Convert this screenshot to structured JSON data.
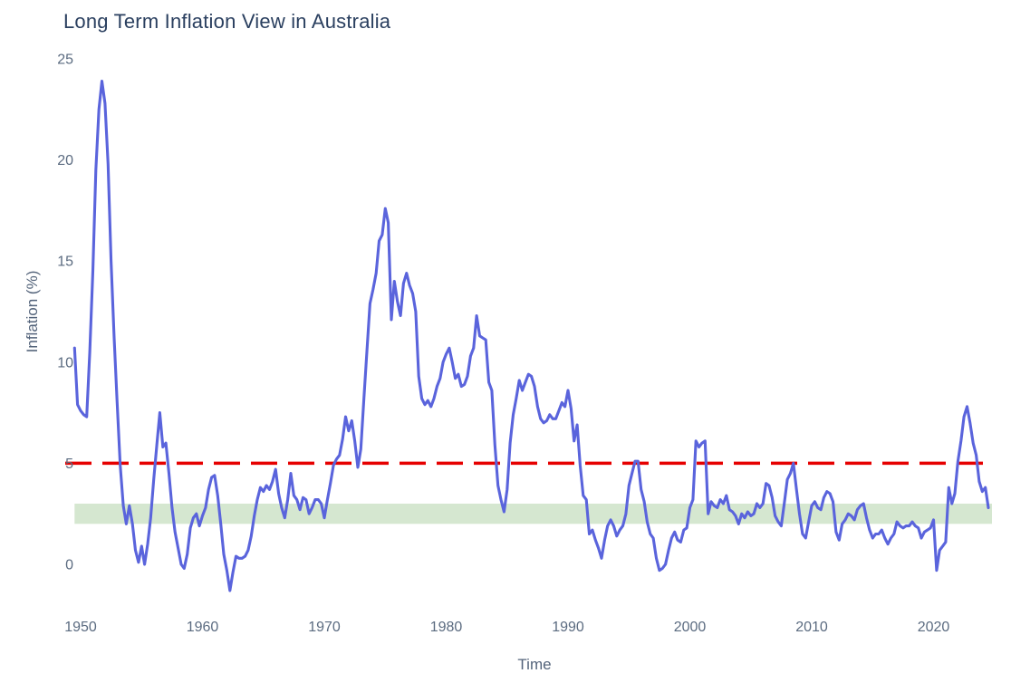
{
  "chart_data": {
    "type": "line",
    "title": "Long Term Inflation View in Australia",
    "xlabel": "Time",
    "ylabel": "Inflation (%)",
    "x_ticks": [
      "1950",
      "1960",
      "1970",
      "1980",
      "1990",
      "2000",
      "2010",
      "2020"
    ],
    "y_ticks": [
      "0",
      "5",
      "10",
      "15",
      "20",
      "25"
    ],
    "y_tick_values": [
      0,
      5,
      10,
      15,
      20,
      25
    ],
    "x_tick_values": [
      1950,
      1960,
      1970,
      1980,
      1990,
      2000,
      2010,
      2020
    ],
    "xlim": [
      1948.7,
      2024.8
    ],
    "ylim": [
      0,
      25
    ],
    "grid": false,
    "legend": "none",
    "line_color": "#5a64dc",
    "reference_line": {
      "y": 5,
      "color": "#e60000",
      "style": "dashed"
    },
    "target_band": {
      "y_from": 2,
      "y_to": 3,
      "color": "#d5e7d0"
    },
    "series": [
      {
        "name": "Inflation",
        "x_start": 1949.5,
        "x_step": 0.25,
        "values": [
          10.7,
          7.9,
          7.6,
          7.4,
          7.3,
          10.5,
          14.5,
          19.5,
          22.5,
          23.9,
          22.8,
          19.8,
          15.0,
          11.2,
          8.0,
          4.9,
          2.9,
          2.0,
          2.9,
          2.0,
          0.7,
          0.1,
          0.9,
          0.0,
          1.0,
          2.3,
          4.2,
          5.9,
          7.5,
          5.8,
          6.0,
          4.5,
          2.8,
          1.6,
          0.8,
          0.0,
          -0.2,
          0.5,
          1.8,
          2.3,
          2.5,
          1.9,
          2.4,
          2.8,
          3.7,
          4.3,
          4.4,
          3.4,
          2.0,
          0.5,
          -0.3,
          -1.3,
          -0.4,
          0.4,
          0.3,
          0.3,
          0.4,
          0.7,
          1.4,
          2.4,
          3.2,
          3.8,
          3.6,
          3.9,
          3.7,
          4.1,
          4.7,
          3.5,
          2.8,
          2.3,
          3.2,
          4.5,
          3.4,
          3.2,
          2.7,
          3.3,
          3.2,
          2.5,
          2.8,
          3.2,
          3.2,
          3.0,
          2.3,
          3.2,
          4.0,
          4.9,
          5.2,
          5.4,
          6.2,
          7.3,
          6.6,
          7.1,
          6.1,
          4.8,
          5.7,
          8.2,
          10.6,
          12.9,
          13.6,
          14.4,
          16.0,
          16.3,
          17.6,
          16.9,
          12.1,
          14.0,
          13.0,
          12.3,
          13.9,
          14.4,
          13.8,
          13.4,
          12.5,
          9.3,
          8.2,
          7.9,
          8.1,
          7.8,
          8.2,
          8.8,
          9.2,
          10.0,
          10.4,
          10.7,
          10.0,
          9.2,
          9.4,
          8.8,
          8.9,
          9.3,
          10.3,
          10.7,
          12.3,
          11.3,
          11.2,
          11.1,
          9.0,
          8.6,
          5.9,
          3.9,
          3.2,
          2.6,
          3.7,
          6.0,
          7.4,
          8.2,
          9.1,
          8.6,
          9.0,
          9.4,
          9.3,
          8.8,
          7.8,
          7.2,
          7.0,
          7.1,
          7.4,
          7.2,
          7.2,
          7.6,
          8.0,
          7.8,
          8.6,
          7.7,
          6.1,
          6.9,
          4.9,
          3.4,
          3.2,
          1.5,
          1.7,
          1.2,
          0.8,
          0.3,
          1.2,
          1.9,
          2.2,
          1.9,
          1.4,
          1.7,
          1.9,
          2.5,
          3.9,
          4.5,
          5.1,
          5.1,
          3.7,
          3.1,
          2.1,
          1.5,
          1.3,
          0.3,
          -0.3,
          -0.2,
          0.0,
          0.7,
          1.3,
          1.6,
          1.2,
          1.1,
          1.7,
          1.8,
          2.8,
          3.2,
          6.1,
          5.8,
          6.0,
          6.1,
          2.5,
          3.1,
          2.9,
          2.8,
          3.2,
          3.0,
          3.4,
          2.7,
          2.6,
          2.4,
          2.0,
          2.5,
          2.3,
          2.6,
          2.4,
          2.5,
          3.0,
          2.8,
          3.0,
          4.0,
          3.9,
          3.3,
          2.4,
          2.1,
          1.9,
          3.0,
          4.2,
          4.5,
          5.0,
          3.7,
          2.5,
          1.5,
          1.3,
          2.1,
          2.9,
          3.1,
          2.8,
          2.7,
          3.3,
          3.6,
          3.5,
          3.1,
          1.6,
          1.2,
          2.0,
          2.2,
          2.5,
          2.4,
          2.2,
          2.7,
          2.9,
          3.0,
          2.3,
          1.7,
          1.3,
          1.5,
          1.5,
          1.7,
          1.3,
          1.0,
          1.3,
          1.5,
          2.1,
          1.9,
          1.8,
          1.9,
          1.9,
          2.1,
          1.9,
          1.8,
          1.3,
          1.6,
          1.7,
          1.8,
          2.2,
          -0.3,
          0.7,
          0.9,
          1.1,
          3.8,
          3.0,
          3.5,
          5.1,
          6.1,
          7.3,
          7.8,
          7.0,
          6.0,
          5.4,
          4.1,
          3.6,
          3.8,
          2.8
        ]
      }
    ],
    "text_colors": {
      "title": "#2a3f5f",
      "axis_titles": "#53637a",
      "tick_labels": "#5b6b80"
    },
    "background": "#ffffff"
  }
}
